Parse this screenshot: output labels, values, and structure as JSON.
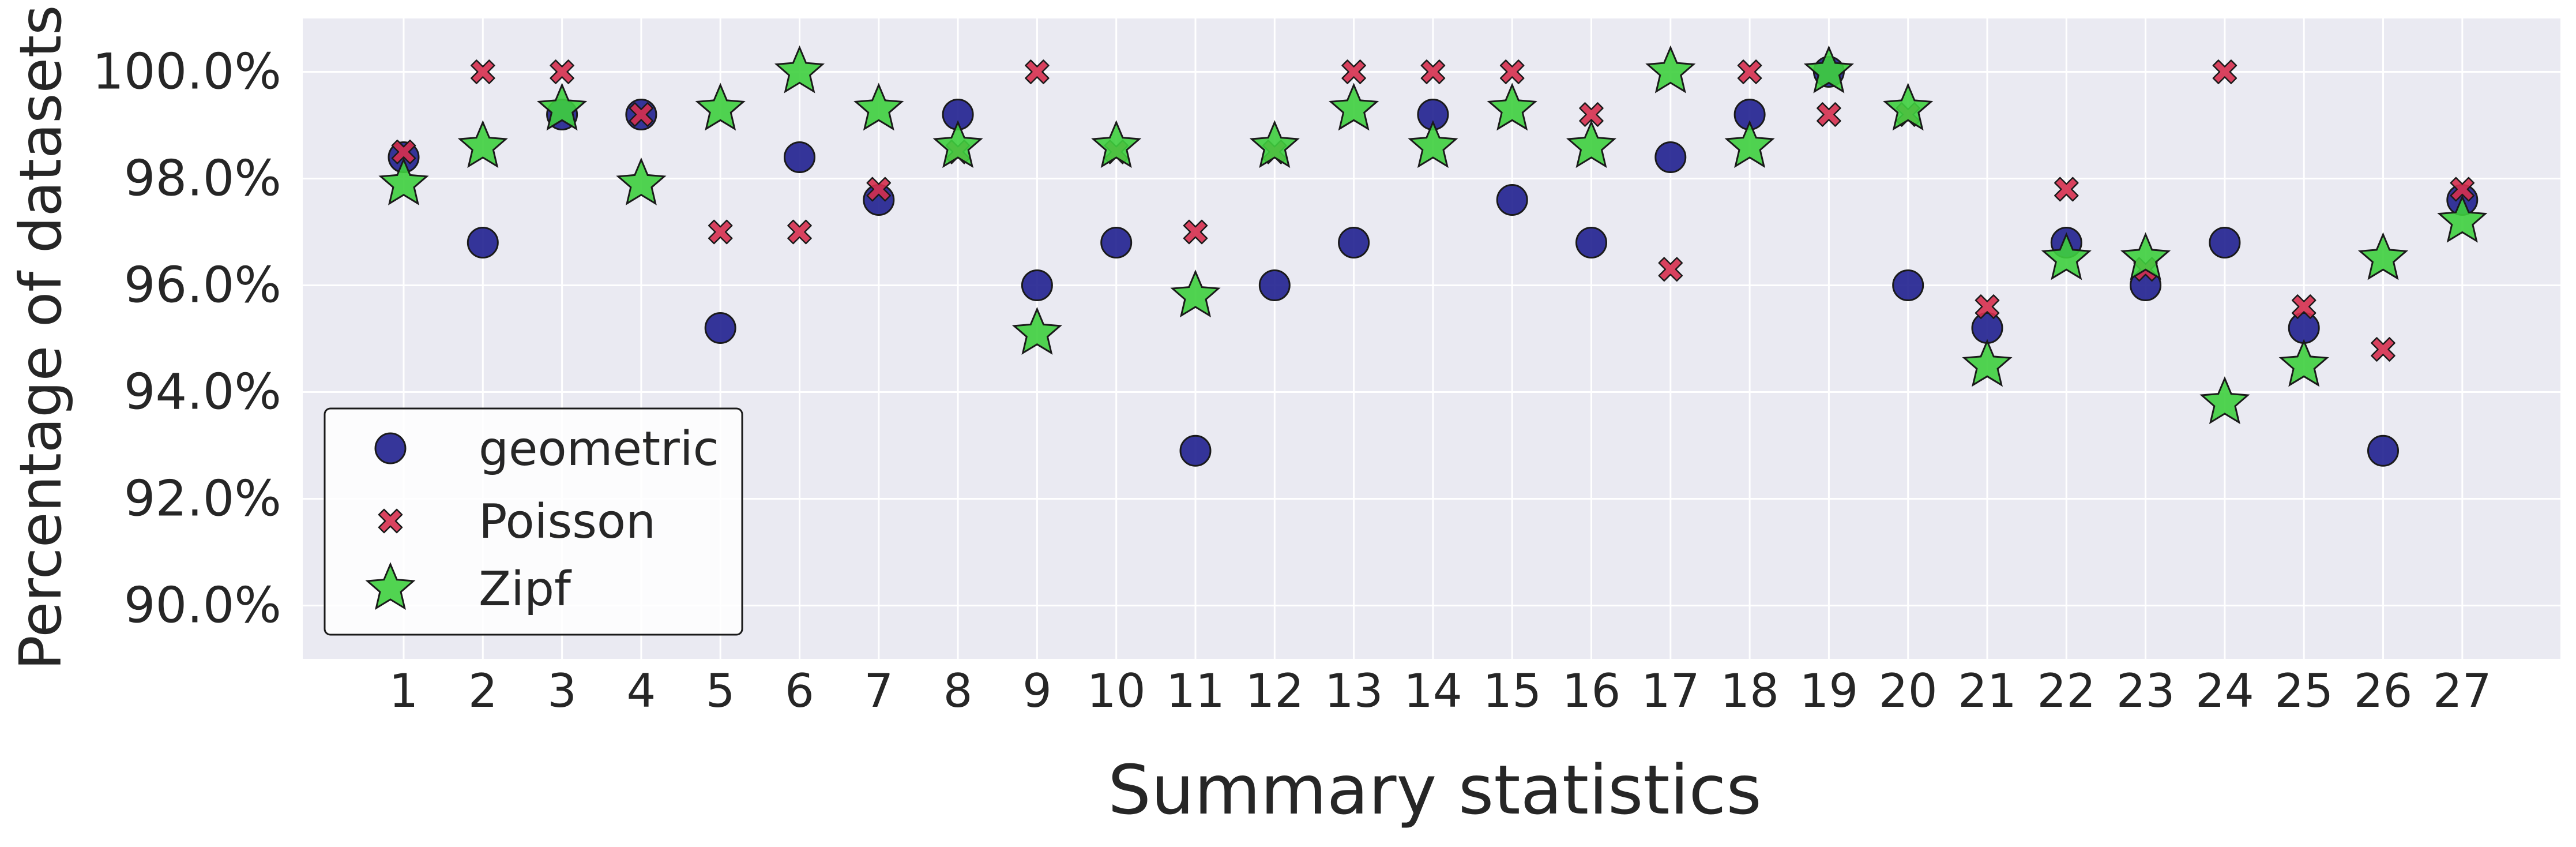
{
  "chart_data": {
    "type": "scatter",
    "title": "",
    "xlabel": "Summary statistics",
    "ylabel": "Percentage of datasets",
    "x": [
      1,
      2,
      3,
      4,
      5,
      6,
      7,
      8,
      9,
      10,
      11,
      12,
      13,
      14,
      15,
      16,
      17,
      18,
      19,
      20,
      21,
      22,
      23,
      24,
      25,
      26,
      27
    ],
    "xticks": [
      "1",
      "2",
      "3",
      "4",
      "5",
      "6",
      "7",
      "8",
      "9",
      "10",
      "11",
      "12",
      "13",
      "14",
      "15",
      "16",
      "17",
      "18",
      "19",
      "20",
      "21",
      "22",
      "23",
      "24",
      "25",
      "26",
      "27"
    ],
    "ylim": [
      89.0,
      101.0
    ],
    "yticks": [
      90.0,
      92.0,
      94.0,
      96.0,
      98.0,
      100.0
    ],
    "ytick_labels": [
      "90.0%",
      "92.0%",
      "94.0%",
      "96.0%",
      "98.0%",
      "100.0%"
    ],
    "grid": true,
    "legend_position": "lower-left",
    "series": [
      {
        "name": "geometric",
        "marker": "circle",
        "color": "#1a1a8c",
        "values": [
          98.4,
          96.8,
          99.2,
          99.2,
          95.2,
          98.4,
          97.6,
          99.2,
          96.0,
          96.8,
          92.9,
          96.0,
          96.8,
          99.2,
          97.6,
          96.8,
          98.4,
          99.2,
          100.0,
          96.0,
          95.2,
          96.8,
          96.0,
          96.8,
          95.2,
          92.9,
          97.6
        ]
      },
      {
        "name": "Poisson",
        "marker": "x",
        "color": "#d62f4e",
        "values": [
          98.5,
          100.0,
          100.0,
          99.2,
          97.0,
          97.0,
          97.8,
          98.5,
          100.0,
          98.5,
          97.0,
          98.5,
          100.0,
          100.0,
          100.0,
          99.2,
          96.3,
          100.0,
          99.2,
          99.2,
          95.6,
          97.8,
          96.3,
          100.0,
          95.6,
          94.8,
          97.8
        ]
      },
      {
        "name": "Zipf",
        "marker": "star",
        "color": "#3ecf3e",
        "values": [
          97.9,
          98.6,
          99.3,
          97.9,
          99.3,
          100.0,
          99.3,
          98.6,
          95.1,
          98.6,
          95.8,
          98.6,
          99.3,
          98.6,
          99.3,
          98.6,
          100.0,
          98.6,
          100.0,
          99.3,
          94.5,
          96.5,
          96.5,
          93.8,
          94.5,
          96.5,
          97.2
        ]
      }
    ]
  }
}
